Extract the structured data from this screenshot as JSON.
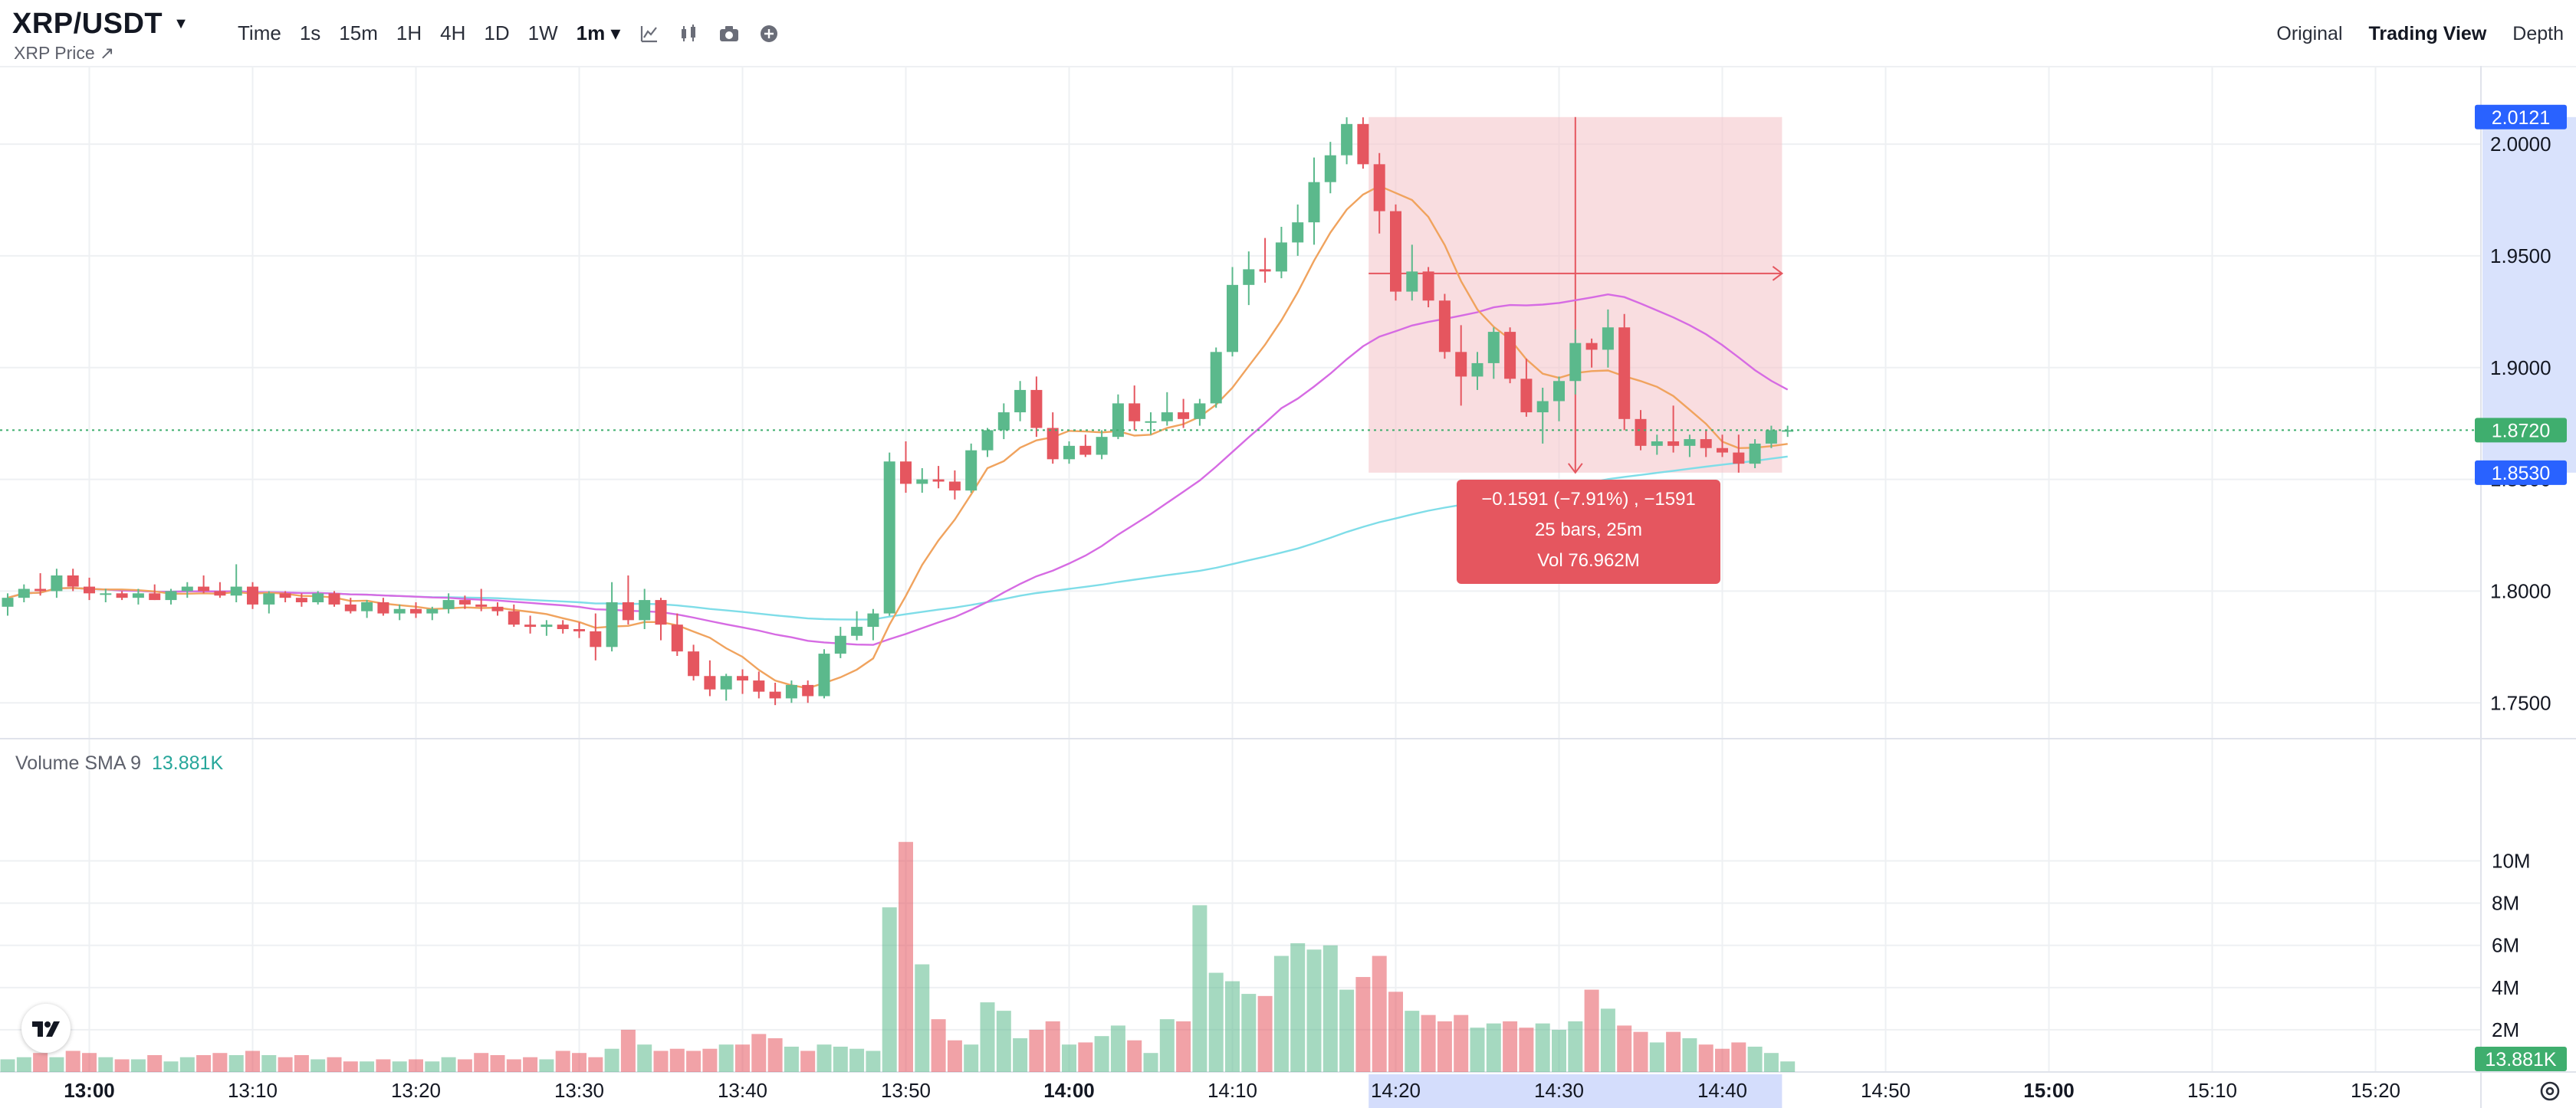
{
  "header": {
    "symbol": "XRP/USDT",
    "subtitle": "XRP Price ↗",
    "intervals": [
      "Time",
      "1s",
      "15m",
      "1H",
      "4H",
      "1D",
      "1W"
    ],
    "active_interval": "1m ▾",
    "views": [
      "Original",
      "Trading View",
      "Depth"
    ],
    "active_view": "Trading View"
  },
  "tooltip": {
    "line1": "−0.1591 (−7.91%) , −1591",
    "line2": "25 bars, 25m",
    "line3": "Vol 76.962M"
  },
  "volume": {
    "legend_label": "Volume SMA 9",
    "legend_value": "13.881K",
    "badge": "13.881K"
  },
  "price_badges": {
    "top": "2.0121",
    "current": "1.8720",
    "bottom": "1.8530"
  },
  "colors": {
    "up": "#5bb98c",
    "down": "#e5565f",
    "ma_fast": "#f0a35e",
    "ma_mid": "#d66be3",
    "ma_slow": "#7fdde8",
    "measure_fill": "#f5c6cc",
    "axis_highlight": "#c9d5fb",
    "badge_blue": "#2962ff",
    "badge_green": "#3fae6e"
  },
  "chart_data": {
    "type": "candlestick",
    "interval": "1m",
    "start_time": "12:55",
    "y_ticks": [
      "2.0000",
      "1.9500",
      "1.9000",
      "1.8500",
      "1.8000",
      "1.7500"
    ],
    "ylim": [
      1.735,
      2.035
    ],
    "vol_ticks": [
      "10M",
      "8M",
      "6M",
      "4M",
      "2M"
    ],
    "vol_lim": [
      0,
      11
    ],
    "x_ticks": [
      "13:00",
      "13:10",
      "13:20",
      "13:30",
      "13:40",
      "13:50",
      "14:00",
      "14:10",
      "14:20",
      "14:30",
      "14:40",
      "14:50",
      "15:00",
      "15:10",
      "15:20"
    ],
    "bold_x_ticks": [
      "13:00",
      "14:00",
      "15:00"
    ],
    "candles": [
      [
        1.793,
        1.799,
        1.789,
        1.797
      ],
      [
        1.797,
        1.803,
        1.795,
        1.801
      ],
      [
        1.801,
        1.808,
        1.798,
        1.8
      ],
      [
        1.8,
        1.81,
        1.797,
        1.807
      ],
      [
        1.807,
        1.81,
        1.8,
        1.802
      ],
      [
        1.802,
        1.806,
        1.796,
        1.799
      ],
      [
        1.799,
        1.801,
        1.795,
        1.799
      ],
      [
        1.799,
        1.8,
        1.796,
        1.797
      ],
      [
        1.797,
        1.801,
        1.794,
        1.799
      ],
      [
        1.799,
        1.803,
        1.796,
        1.796
      ],
      [
        1.796,
        1.801,
        1.794,
        1.8
      ],
      [
        1.8,
        1.804,
        1.797,
        1.802
      ],
      [
        1.802,
        1.807,
        1.799,
        1.8
      ],
      [
        1.8,
        1.804,
        1.797,
        1.798
      ],
      [
        1.798,
        1.812,
        1.795,
        1.802
      ],
      [
        1.802,
        1.804,
        1.792,
        1.794
      ],
      [
        1.794,
        1.8,
        1.79,
        1.799
      ],
      [
        1.799,
        1.8,
        1.795,
        1.797
      ],
      [
        1.797,
        1.799,
        1.793,
        1.795
      ],
      [
        1.795,
        1.8,
        1.794,
        1.799
      ],
      [
        1.799,
        1.8,
        1.793,
        1.794
      ],
      [
        1.794,
        1.797,
        1.79,
        1.791
      ],
      [
        1.791,
        1.796,
        1.788,
        1.795
      ],
      [
        1.795,
        1.797,
        1.789,
        1.79
      ],
      [
        1.79,
        1.794,
        1.787,
        1.792
      ],
      [
        1.792,
        1.795,
        1.788,
        1.79
      ],
      [
        1.79,
        1.793,
        1.787,
        1.792
      ],
      [
        1.792,
        1.799,
        1.79,
        1.796
      ],
      [
        1.796,
        1.798,
        1.792,
        1.794
      ],
      [
        1.794,
        1.801,
        1.791,
        1.793
      ],
      [
        1.793,
        1.795,
        1.789,
        1.791
      ],
      [
        1.791,
        1.794,
        1.784,
        1.785
      ],
      [
        1.785,
        1.789,
        1.781,
        1.784
      ],
      [
        1.784,
        1.787,
        1.78,
        1.785
      ],
      [
        1.785,
        1.787,
        1.781,
        1.783
      ],
      [
        1.783,
        1.786,
        1.779,
        1.782
      ],
      [
        1.782,
        1.79,
        1.769,
        1.775
      ],
      [
        1.775,
        1.804,
        1.773,
        1.795
      ],
      [
        1.795,
        1.807,
        1.785,
        1.787
      ],
      [
        1.787,
        1.801,
        1.783,
        1.796
      ],
      [
        1.796,
        1.797,
        1.778,
        1.785
      ],
      [
        1.785,
        1.79,
        1.771,
        1.773
      ],
      [
        1.773,
        1.776,
        1.76,
        1.762
      ],
      [
        1.762,
        1.769,
        1.753,
        1.756
      ],
      [
        1.756,
        1.763,
        1.751,
        1.762
      ],
      [
        1.762,
        1.765,
        1.754,
        1.76
      ],
      [
        1.76,
        1.764,
        1.752,
        1.755
      ],
      [
        1.755,
        1.759,
        1.749,
        1.752
      ],
      [
        1.752,
        1.76,
        1.75,
        1.758
      ],
      [
        1.758,
        1.76,
        1.75,
        1.753
      ],
      [
        1.753,
        1.774,
        1.752,
        1.772
      ],
      [
        1.772,
        1.784,
        1.77,
        1.78
      ],
      [
        1.78,
        1.791,
        1.778,
        1.784
      ],
      [
        1.784,
        1.792,
        1.778,
        1.79
      ],
      [
        1.79,
        1.862,
        1.789,
        1.858
      ],
      [
        1.858,
        1.867,
        1.844,
        1.848
      ],
      [
        1.848,
        1.855,
        1.844,
        1.85
      ],
      [
        1.85,
        1.856,
        1.846,
        1.849
      ],
      [
        1.849,
        1.854,
        1.841,
        1.845
      ],
      [
        1.845,
        1.866,
        1.844,
        1.863
      ],
      [
        1.863,
        1.873,
        1.86,
        1.872
      ],
      [
        1.872,
        1.884,
        1.868,
        1.88
      ],
      [
        1.88,
        1.894,
        1.876,
        1.89
      ],
      [
        1.89,
        1.896,
        1.869,
        1.873
      ],
      [
        1.873,
        1.88,
        1.857,
        1.859
      ],
      [
        1.859,
        1.867,
        1.857,
        1.865
      ],
      [
        1.865,
        1.87,
        1.86,
        1.861
      ],
      [
        1.861,
        1.872,
        1.859,
        1.869
      ],
      [
        1.869,
        1.888,
        1.868,
        1.884
      ],
      [
        1.884,
        1.892,
        1.872,
        1.876
      ],
      [
        1.876,
        1.88,
        1.87,
        1.876
      ],
      [
        1.876,
        1.889,
        1.874,
        1.88
      ],
      [
        1.88,
        1.886,
        1.873,
        1.877
      ],
      [
        1.877,
        1.886,
        1.874,
        1.884
      ],
      [
        1.884,
        1.909,
        1.882,
        1.907
      ],
      [
        1.907,
        1.945,
        1.905,
        1.937
      ],
      [
        1.937,
        1.952,
        1.928,
        1.944
      ],
      [
        1.944,
        1.958,
        1.938,
        1.943
      ],
      [
        1.943,
        1.963,
        1.94,
        1.956
      ],
      [
        1.956,
        1.973,
        1.95,
        1.965
      ],
      [
        1.965,
        1.994,
        1.955,
        1.983
      ],
      [
        1.983,
        2.001,
        1.978,
        1.995
      ],
      [
        1.995,
        2.012,
        1.991,
        2.009
      ],
      [
        2.009,
        2.012,
        1.989,
        1.991
      ],
      [
        1.991,
        1.996,
        1.96,
        1.97
      ],
      [
        1.97,
        1.973,
        1.93,
        1.934
      ],
      [
        1.934,
        1.955,
        1.93,
        1.943
      ],
      [
        1.943,
        1.945,
        1.927,
        1.93
      ],
      [
        1.93,
        1.933,
        1.904,
        1.907
      ],
      [
        1.907,
        1.919,
        1.883,
        1.896
      ],
      [
        1.896,
        1.907,
        1.89,
        1.902
      ],
      [
        1.902,
        1.918,
        1.895,
        1.916
      ],
      [
        1.916,
        1.918,
        1.893,
        1.895
      ],
      [
        1.895,
        1.904,
        1.878,
        1.88
      ],
      [
        1.88,
        1.891,
        1.866,
        1.885
      ],
      [
        1.885,
        1.896,
        1.876,
        1.894
      ],
      [
        1.894,
        1.917,
        1.888,
        1.911
      ],
      [
        1.911,
        1.913,
        1.9,
        1.908
      ],
      [
        1.908,
        1.926,
        1.9,
        1.918
      ],
      [
        1.918,
        1.924,
        1.872,
        1.877
      ],
      [
        1.877,
        1.881,
        1.863,
        1.865
      ],
      [
        1.865,
        1.87,
        1.861,
        1.867
      ],
      [
        1.867,
        1.883,
        1.862,
        1.865
      ],
      [
        1.865,
        1.87,
        1.86,
        1.868
      ],
      [
        1.868,
        1.872,
        1.86,
        1.864
      ],
      [
        1.864,
        1.87,
        1.86,
        1.862
      ],
      [
        1.862,
        1.87,
        1.853,
        1.857
      ],
      [
        1.857,
        1.868,
        1.855,
        1.866
      ],
      [
        1.866,
        1.874,
        1.864,
        1.872
      ],
      [
        1.872,
        1.874,
        1.869,
        1.872
      ]
    ],
    "volume_m": [
      0.6,
      0.7,
      0.9,
      0.7,
      1.0,
      0.9,
      0.7,
      0.6,
      0.6,
      0.8,
      0.5,
      0.7,
      0.8,
      0.9,
      0.8,
      1.0,
      0.8,
      0.7,
      0.8,
      0.6,
      0.7,
      0.5,
      0.5,
      0.6,
      0.5,
      0.6,
      0.5,
      0.7,
      0.6,
      0.9,
      0.8,
      0.6,
      0.7,
      0.6,
      1.0,
      0.9,
      0.7,
      1.1,
      2.0,
      1.3,
      1.0,
      1.1,
      1.0,
      1.1,
      1.3,
      1.3,
      1.8,
      1.6,
      1.2,
      1.0,
      1.3,
      1.2,
      1.1,
      1.0,
      7.8,
      10.9,
      5.1,
      2.5,
      1.5,
      1.3,
      3.3,
      2.9,
      1.6,
      2.0,
      2.4,
      1.3,
      1.4,
      1.7,
      2.2,
      1.5,
      0.9,
      2.5,
      2.4,
      7.9,
      4.7,
      4.3,
      3.7,
      3.6,
      5.5,
      6.1,
      5.8,
      6.0,
      3.9,
      4.5,
      5.5,
      3.8,
      2.9,
      2.7,
      2.4,
      2.7,
      2.1,
      2.3,
      2.4,
      2.1,
      2.3,
      2.0,
      2.4,
      3.9,
      3.0,
      2.2,
      1.9,
      1.4,
      1.9,
      1.6,
      1.3,
      1.1,
      1.4,
      1.2,
      0.9,
      0.5
    ],
    "measure": {
      "start_index": 84,
      "end_index": 108,
      "high": 2.0121,
      "low": 1.853
    }
  }
}
